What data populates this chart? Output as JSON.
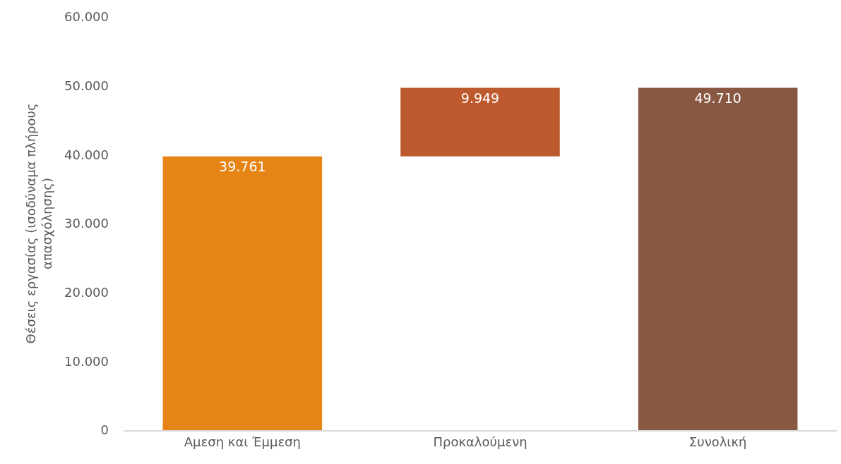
{
  "chart_data": {
    "type": "bar",
    "ylabel": "Θέσεις εργασίας (ισοδύναμα πλήρους απασχόλησης)",
    "categories": [
      "Αμεση και Έμμεση",
      "Προκαλούμενη",
      "Συνολική"
    ],
    "values": [
      39761,
      9949,
      49710
    ],
    "base": [
      0,
      39761,
      0
    ],
    "colors": [
      "#e68415",
      "#bd5a2d",
      "#895843"
    ],
    "value_labels": [
      "39.761",
      "9.949",
      "49.710"
    ],
    "ylim": [
      0,
      60000
    ],
    "yticks": [
      {
        "value": 0,
        "label": "0"
      },
      {
        "value": 10000,
        "label": "10.000"
      },
      {
        "value": 20000,
        "label": "20.000"
      },
      {
        "value": 30000,
        "label": "30.000"
      },
      {
        "value": 40000,
        "label": "40.000"
      },
      {
        "value": 50000,
        "label": "50.000"
      },
      {
        "value": 60000,
        "label": "60.000"
      }
    ]
  }
}
